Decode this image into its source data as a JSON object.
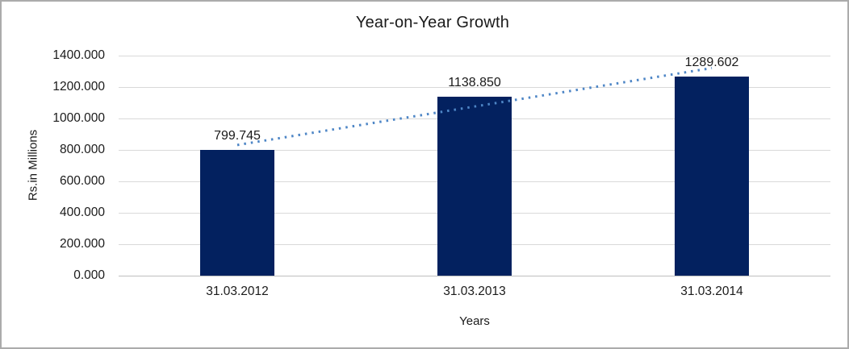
{
  "frame": {
    "background": "#FFFFFF",
    "border_color": "#ABABAB"
  },
  "chart_data": {
    "type": "bar",
    "title": "Year-on-Year Growth",
    "categories": [
      "31.03.2012",
      "31.03.2013",
      "31.03.2014"
    ],
    "values": [
      799.745,
      1138.85,
      1289.602
    ],
    "data_labels": [
      "799.745",
      "1138.850",
      "1289.602"
    ],
    "xlabel": "Years",
    "ylabel": "Rs.in Millions",
    "ylim": [
      0,
      1400
    ],
    "ytick_interval": 200,
    "ytick_labels": [
      "1400.000",
      "1200.000",
      "1000.000",
      "800.000",
      "600.000",
      "400.000",
      "200.000",
      "0.000"
    ],
    "grid": "horizontal-only",
    "legend_position": "none",
    "bar_color": "#03215F",
    "gridline_color": "#D9D9D9",
    "axis_line_color": "#BFBFBF",
    "text_color": "#1A1A1A",
    "trendline": {
      "type": "linear",
      "style": "dotted",
      "color": "#4E86C6",
      "fitted_to": "values"
    }
  }
}
